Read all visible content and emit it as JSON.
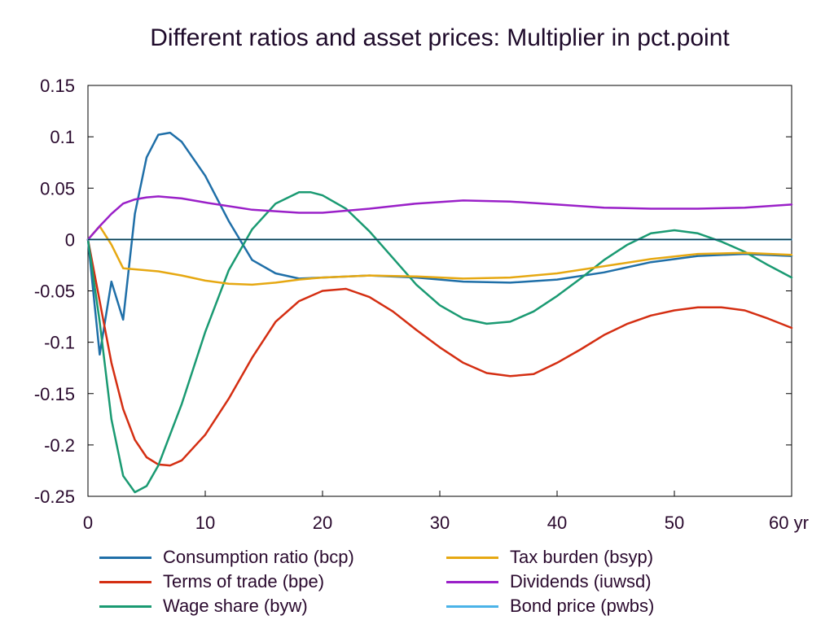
{
  "chart_data": {
    "type": "line",
    "title": "Different ratios and asset prices: Multiplier in pct.point",
    "xlabel": "",
    "ylabel": "",
    "x_unit_label": "yr",
    "xlim": [
      0,
      60
    ],
    "ylim": [
      -0.25,
      0.15
    ],
    "x_ticks": [
      0,
      10,
      20,
      30,
      40,
      50,
      60
    ],
    "x_tick_labels": [
      "0",
      "10",
      "20",
      "30",
      "40",
      "50",
      "60 yr"
    ],
    "y_ticks": [
      -0.25,
      -0.2,
      -0.15,
      -0.1,
      -0.05,
      0,
      0.05,
      0.1,
      0.15
    ],
    "y_tick_labels": [
      "-0.25",
      "-0.2",
      "-0.15",
      "-0.1",
      "-0.05",
      "0",
      "0.05",
      "0.1",
      "0.15"
    ],
    "grid": false,
    "legend_position": "bottom",
    "series": [
      {
        "name": "Consumption ratio (bcp)",
        "color": "#1f6fa8",
        "points": [
          [
            0,
            0
          ],
          [
            1,
            -0.112
          ],
          [
            2,
            -0.041
          ],
          [
            3,
            -0.078
          ],
          [
            4,
            0.025
          ],
          [
            5,
            0.08
          ],
          [
            6,
            0.102
          ],
          [
            7,
            0.104
          ],
          [
            8,
            0.095
          ],
          [
            10,
            0.062
          ],
          [
            12,
            0.018
          ],
          [
            14,
            -0.02
          ],
          [
            16,
            -0.033
          ],
          [
            18,
            -0.038
          ],
          [
            20,
            -0.037
          ],
          [
            24,
            -0.035
          ],
          [
            28,
            -0.037
          ],
          [
            32,
            -0.041
          ],
          [
            36,
            -0.042
          ],
          [
            40,
            -0.039
          ],
          [
            44,
            -0.032
          ],
          [
            48,
            -0.022
          ],
          [
            52,
            -0.016
          ],
          [
            56,
            -0.014
          ],
          [
            60,
            -0.016
          ]
        ]
      },
      {
        "name": "Terms of trade (bpe)",
        "color": "#d42e12",
        "points": [
          [
            0,
            0
          ],
          [
            1,
            -0.06
          ],
          [
            2,
            -0.12
          ],
          [
            3,
            -0.165
          ],
          [
            4,
            -0.195
          ],
          [
            5,
            -0.212
          ],
          [
            6,
            -0.219
          ],
          [
            7,
            -0.22
          ],
          [
            8,
            -0.215
          ],
          [
            10,
            -0.19
          ],
          [
            12,
            -0.155
          ],
          [
            14,
            -0.115
          ],
          [
            16,
            -0.08
          ],
          [
            18,
            -0.06
          ],
          [
            20,
            -0.05
          ],
          [
            22,
            -0.048
          ],
          [
            24,
            -0.056
          ],
          [
            26,
            -0.07
          ],
          [
            28,
            -0.088
          ],
          [
            30,
            -0.105
          ],
          [
            32,
            -0.12
          ],
          [
            34,
            -0.13
          ],
          [
            36,
            -0.133
          ],
          [
            38,
            -0.131
          ],
          [
            40,
            -0.12
          ],
          [
            42,
            -0.107
          ],
          [
            44,
            -0.093
          ],
          [
            46,
            -0.082
          ],
          [
            48,
            -0.074
          ],
          [
            50,
            -0.069
          ],
          [
            52,
            -0.066
          ],
          [
            54,
            -0.066
          ],
          [
            56,
            -0.069
          ],
          [
            58,
            -0.077
          ],
          [
            60,
            -0.086
          ]
        ]
      },
      {
        "name": "Wage share (byw)",
        "color": "#1a9a72",
        "points": [
          [
            0,
            0
          ],
          [
            1,
            -0.08
          ],
          [
            2,
            -0.175
          ],
          [
            3,
            -0.23
          ],
          [
            4,
            -0.246
          ],
          [
            5,
            -0.24
          ],
          [
            6,
            -0.22
          ],
          [
            8,
            -0.16
          ],
          [
            10,
            -0.09
          ],
          [
            12,
            -0.03
          ],
          [
            14,
            0.01
          ],
          [
            16,
            0.035
          ],
          [
            18,
            0.046
          ],
          [
            19,
            0.046
          ],
          [
            20,
            0.043
          ],
          [
            22,
            0.03
          ],
          [
            24,
            0.008
          ],
          [
            26,
            -0.018
          ],
          [
            28,
            -0.044
          ],
          [
            30,
            -0.064
          ],
          [
            32,
            -0.077
          ],
          [
            34,
            -0.082
          ],
          [
            36,
            -0.08
          ],
          [
            38,
            -0.07
          ],
          [
            40,
            -0.055
          ],
          [
            42,
            -0.038
          ],
          [
            44,
            -0.02
          ],
          [
            46,
            -0.005
          ],
          [
            48,
            0.006
          ],
          [
            50,
            0.009
          ],
          [
            52,
            0.006
          ],
          [
            54,
            -0.002
          ],
          [
            56,
            -0.012
          ],
          [
            58,
            -0.025
          ],
          [
            60,
            -0.037
          ]
        ]
      },
      {
        "name": "Tax burden (bsyp)",
        "color": "#e6a812",
        "points": [
          [
            0,
            0
          ],
          [
            1,
            0.013
          ],
          [
            2,
            -0.005
          ],
          [
            3,
            -0.028
          ],
          [
            4,
            -0.029
          ],
          [
            6,
            -0.031
          ],
          [
            8,
            -0.035
          ],
          [
            10,
            -0.04
          ],
          [
            12,
            -0.043
          ],
          [
            14,
            -0.044
          ],
          [
            16,
            -0.042
          ],
          [
            18,
            -0.039
          ],
          [
            20,
            -0.037
          ],
          [
            24,
            -0.035
          ],
          [
            28,
            -0.036
          ],
          [
            32,
            -0.038
          ],
          [
            36,
            -0.037
          ],
          [
            40,
            -0.033
          ],
          [
            44,
            -0.026
          ],
          [
            48,
            -0.019
          ],
          [
            52,
            -0.014
          ],
          [
            56,
            -0.013
          ],
          [
            60,
            -0.015
          ]
        ]
      },
      {
        "name": "Dividends (iuwsd)",
        "color": "#9a20c8",
        "points": [
          [
            0,
            0
          ],
          [
            1,
            0.013
          ],
          [
            2,
            0.025
          ],
          [
            3,
            0.035
          ],
          [
            4,
            0.039
          ],
          [
            5,
            0.041
          ],
          [
            6,
            0.042
          ],
          [
            8,
            0.04
          ],
          [
            10,
            0.036
          ],
          [
            14,
            0.029
          ],
          [
            18,
            0.026
          ],
          [
            20,
            0.026
          ],
          [
            24,
            0.03
          ],
          [
            28,
            0.035
          ],
          [
            32,
            0.038
          ],
          [
            36,
            0.037
          ],
          [
            40,
            0.034
          ],
          [
            44,
            0.031
          ],
          [
            48,
            0.03
          ],
          [
            52,
            0.03
          ],
          [
            56,
            0.031
          ],
          [
            60,
            0.034
          ]
        ]
      },
      {
        "name": "Bond price (pwbs)",
        "color": "#4bb3e8",
        "points": [
          [
            0,
            0
          ],
          [
            60,
            0
          ]
        ]
      }
    ]
  },
  "legend_layout": [
    {
      "series_index": 0,
      "column": 0,
      "row": 0
    },
    {
      "series_index": 3,
      "column": 1,
      "row": 0
    },
    {
      "series_index": 1,
      "column": 0,
      "row": 1
    },
    {
      "series_index": 4,
      "column": 1,
      "row": 1
    },
    {
      "series_index": 2,
      "column": 0,
      "row": 2
    },
    {
      "series_index": 5,
      "column": 1,
      "row": 2
    }
  ]
}
